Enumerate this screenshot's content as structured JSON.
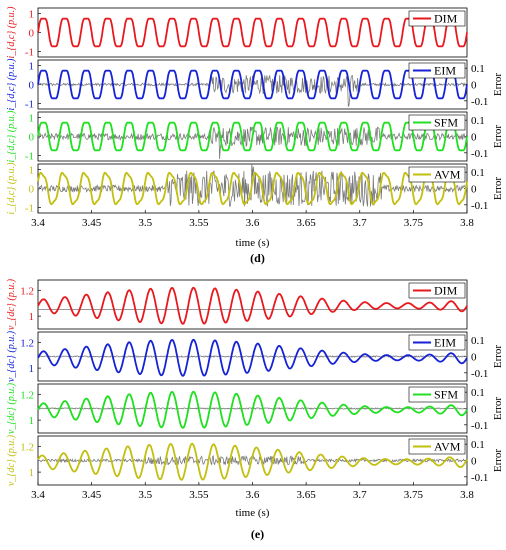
{
  "chart_data": [
    {
      "type": "line",
      "caption": "(d)",
      "xlabel": "time (s)",
      "xlim": [
        3.4,
        3.8
      ],
      "x_ticks": [
        "3.4",
        "3.45",
        "3.5",
        "3.55",
        "3.6",
        "3.65",
        "3.7",
        "3.75",
        "3.8"
      ],
      "legend_position": "top-right",
      "error_axis_label": "Error",
      "panels": [
        {
          "legend": "DIM",
          "color": "#e8191e",
          "ylabel": "i_{d,c} (p.u.)",
          "ylim": [
            -1.3,
            1.3
          ],
          "y_ticks": [
            "1",
            "0",
            "-1"
          ],
          "wave": {
            "offset": 0,
            "amplitude": 0.85,
            "frequency_hz": 50,
            "phase": 0.0,
            "harmonic": 0.12,
            "modulation": 0.0
          },
          "has_error": false
        },
        {
          "legend": "EIM",
          "color": "#1522d6",
          "ylabel": "i_{d,c} (p.u.)",
          "ylim": [
            -1.3,
            1.3
          ],
          "y_ticks": [
            "1",
            "0",
            "-1"
          ],
          "error_ticks": [
            "0.1",
            "0",
            "-0.1"
          ],
          "error_ylim": [
            -0.15,
            0.15
          ],
          "wave": {
            "offset": 0,
            "amplitude": 0.85,
            "frequency_hz": 50,
            "phase": 0.0,
            "harmonic": 0.12,
            "modulation": 0.0
          },
          "has_error": true,
          "error": {
            "base": 0.008,
            "burst": 0.05,
            "burst_start": 3.56,
            "burst_end": 3.7,
            "spike_at": 3.69,
            "spike": -0.12
          }
        },
        {
          "legend": "SFM",
          "color": "#1ee01e",
          "ylabel": "i_{d,c} (p.u.)",
          "ylim": [
            -1.3,
            1.3
          ],
          "y_ticks": [
            "1",
            "0",
            "-1"
          ],
          "error_ticks": [
            "0.1",
            "0",
            "-0.1"
          ],
          "error_ylim": [
            -0.15,
            0.15
          ],
          "wave": {
            "offset": 0,
            "amplitude": 0.85,
            "frequency_hz": 50,
            "phase": 0.0,
            "harmonic": 0.12,
            "modulation": 0.0
          },
          "has_error": true,
          "error": {
            "base": 0.02,
            "burst": 0.04,
            "burst_start": 3.56,
            "burst_end": 3.72,
            "spike_at": 3.57,
            "spike": -0.08
          }
        },
        {
          "legend": "AVM",
          "color": "#c2bf0e",
          "ylabel": "i_{d,c} (p.u.)",
          "ylim": [
            -1.3,
            1.3
          ],
          "y_ticks": [
            "1",
            "0",
            "-1"
          ],
          "error_ticks": [
            "0.1",
            "0",
            "-0.1"
          ],
          "error_ylim": [
            -0.15,
            0.15
          ],
          "wave": {
            "offset": 0,
            "amplitude": 0.85,
            "frequency_hz": 50,
            "phase": 0.4,
            "harmonic": 0.12,
            "modulation": 0.0
          },
          "has_error": true,
          "error": {
            "base": 0.02,
            "burst": 0.09,
            "burst_start": 3.52,
            "burst_end": 3.72,
            "spike_at": 3.6,
            "spike": 0.12
          }
        }
      ]
    },
    {
      "type": "line",
      "caption": "(e)",
      "xlabel": "time (s)",
      "xlim": [
        3.4,
        3.8
      ],
      "x_ticks": [
        "3.4",
        "3.45",
        "3.5",
        "3.55",
        "3.6",
        "3.65",
        "3.7",
        "3.75",
        "3.8"
      ],
      "legend_position": "top-right",
      "error_axis_label": "Error",
      "panels": [
        {
          "legend": "DIM",
          "color": "#e8191e",
          "ylabel": "v_{dc} (p.u.)",
          "ylim": [
            0.9,
            1.28
          ],
          "y_ticks": [
            "1.2",
            "1"
          ],
          "ref_line": 1.05,
          "wave": {
            "offset": 1.08,
            "amplitude": 0.08,
            "frequency_hz": 50,
            "phase": 0.0,
            "harmonic": 0.0,
            "modulation": 0.06
          },
          "has_error": false
        },
        {
          "legend": "EIM",
          "color": "#1522d6",
          "ylabel": "v_{dc} (p.u.)",
          "ylim": [
            0.9,
            1.28
          ],
          "y_ticks": [
            "1.2",
            "1"
          ],
          "error_ticks": [
            "0.1",
            "0",
            "-0.1"
          ],
          "error_ylim": [
            -0.15,
            0.15
          ],
          "wave": {
            "offset": 1.08,
            "amplitude": 0.08,
            "frequency_hz": 50,
            "phase": 0.0,
            "harmonic": 0.0,
            "modulation": 0.06
          },
          "has_error": true,
          "error": {
            "base": 0.004,
            "burst": 0.0,
            "burst_start": 3.5,
            "burst_end": 3.5,
            "spike_at": 3.5,
            "spike": 0.0
          }
        },
        {
          "legend": "SFM",
          "color": "#1ee01e",
          "ylabel": "v_{dc} (p.u.)",
          "ylim": [
            0.9,
            1.28
          ],
          "y_ticks": [
            "1.2",
            "1"
          ],
          "error_ticks": [
            "0.1",
            "0",
            "-0.1"
          ],
          "error_ylim": [
            -0.15,
            0.15
          ],
          "wave": {
            "offset": 1.08,
            "amplitude": 0.08,
            "frequency_hz": 50,
            "phase": 0.0,
            "harmonic": 0.0,
            "modulation": 0.06
          },
          "has_error": true,
          "error": {
            "base": 0.004,
            "burst": 0.0,
            "burst_start": 3.5,
            "burst_end": 3.5,
            "spike_at": 3.5,
            "spike": 0.0
          }
        },
        {
          "legend": "AVM",
          "color": "#c2bf0e",
          "ylabel": "v_{dc} (p.u.)",
          "ylim": [
            0.9,
            1.28
          ],
          "y_ticks": [
            "1.2",
            "1"
          ],
          "error_ticks": [
            "0.1",
            "0",
            "-0.1"
          ],
          "error_ylim": [
            -0.15,
            0.15
          ],
          "wave": {
            "offset": 1.08,
            "amplitude": 0.08,
            "frequency_hz": 50,
            "phase": 0.4,
            "harmonic": 0.0,
            "modulation": 0.06
          },
          "has_error": true,
          "error": {
            "base": 0.008,
            "burst": 0.02,
            "burst_start": 3.5,
            "burst_end": 3.65,
            "spike_at": 3.6,
            "spike": 0.03
          }
        }
      ]
    }
  ]
}
